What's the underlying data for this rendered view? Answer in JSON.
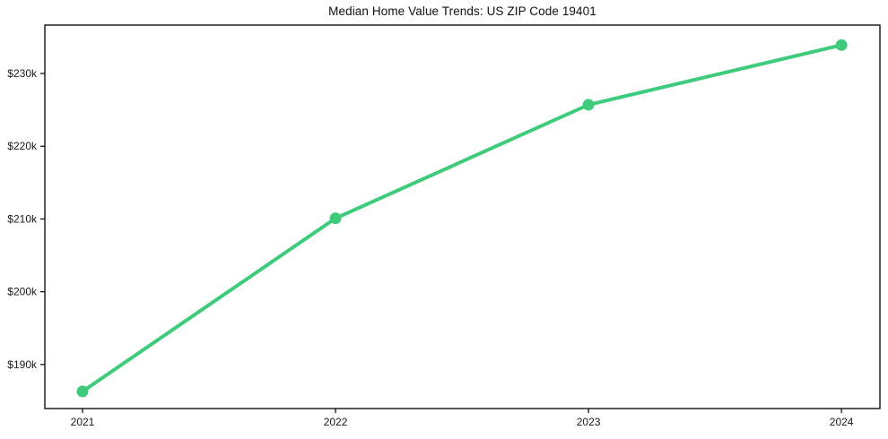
{
  "title": "Median Home Value Trends: US ZIP Code 19401",
  "chart_data": {
    "type": "line",
    "x": [
      2021,
      2022,
      2023,
      2024
    ],
    "x_tick_labels": [
      "2021",
      "2022",
      "2023",
      "2024"
    ],
    "values": [
      186300,
      210100,
      225700,
      233900
    ],
    "y_ticks": [
      {
        "value": 190000,
        "label": "$190k"
      },
      {
        "value": 200000,
        "label": "$200k"
      },
      {
        "value": 210000,
        "label": "$210k"
      },
      {
        "value": 220000,
        "label": "$220k"
      },
      {
        "value": 230000,
        "label": "$230k"
      }
    ],
    "xlim": [
      2020.851,
      2024.152
    ],
    "ylim": [
      183950,
      236650
    ],
    "title": "Median Home Value Trends: US ZIP Code 19401",
    "xlabel": "",
    "ylabel": "",
    "grid": false,
    "legend_position": "none",
    "line_color": "#3ecb7b",
    "marker": "circle",
    "marker_size": 6.5,
    "line_width": 4,
    "spine_color": "#000000",
    "background_color": "#ffffff"
  }
}
